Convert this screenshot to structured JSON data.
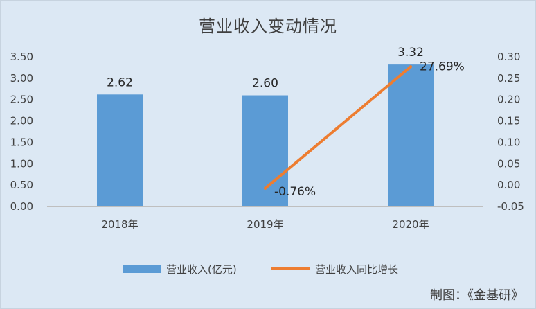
{
  "chart_data": {
    "type": "bar",
    "title": "营业收入变动情况",
    "categories": [
      "2018年",
      "2019年",
      "2020年"
    ],
    "series": [
      {
        "name": "营业收入(亿元)",
        "type": "bar",
        "axis": "left",
        "color": "#5b9bd5",
        "values": [
          2.62,
          2.6,
          3.32
        ],
        "labels": [
          "2.62",
          "2.60",
          "3.32"
        ]
      },
      {
        "name": "营业收入同比增长",
        "type": "line",
        "axis": "right",
        "color": "#ed7d31",
        "values": [
          null,
          -0.0076,
          0.2769
        ],
        "labels": [
          "",
          "-0.76%",
          "27.69%"
        ]
      }
    ],
    "y_left": {
      "min": 0,
      "max": 3.5,
      "step": 0.5,
      "ticks": [
        "0.00",
        "0.50",
        "1.00",
        "1.50",
        "2.00",
        "2.50",
        "3.00",
        "3.50"
      ]
    },
    "y_right": {
      "min": -0.05,
      "max": 0.3,
      "step": 0.05,
      "ticks": [
        "-0.05",
        "0.00",
        "0.05",
        "0.10",
        "0.15",
        "0.20",
        "0.25",
        "0.30"
      ]
    },
    "grid": false,
    "legend_position": "bottom"
  },
  "footer": {
    "credit": "制图：《金基研》"
  }
}
